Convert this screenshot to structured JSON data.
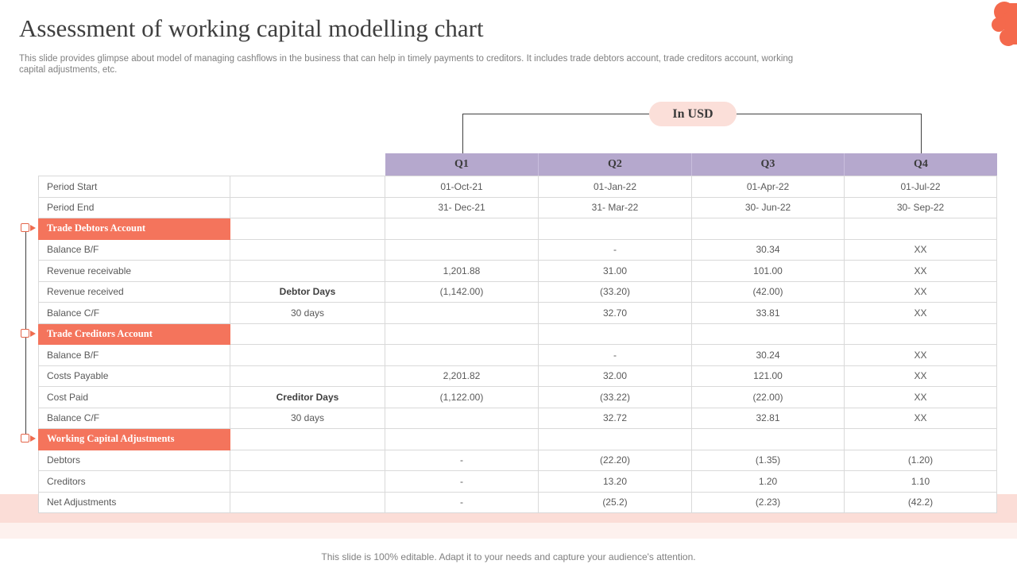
{
  "slide": {
    "title": "Assessment of working capital modelling chart",
    "subtitle": "This slide provides glimpse about model of managing cashflows in the business that can help in timely payments to creditors. It includes trade debtors account, trade creditors account, working capital adjustments, etc.",
    "badge": "In USD",
    "footer": "This slide is 100% editable. Adapt it to your needs and capture your audience's attention."
  },
  "colors": {
    "accent_blob_orange": "#f4694c",
    "section_header_orange": "#f4745c",
    "quarter_header_purple": "#b5a8cd",
    "badge_pink": "#fbdfd9",
    "bottom_strip_pink": "#fbddd7",
    "grid_line_gray": "#d9d9d9"
  },
  "icons": {
    "corner_decoration": "paint-splatter-blob",
    "section_marker": "square-with-right-arrow"
  },
  "table": {
    "quarter_headers": [
      "Q1",
      "Q2",
      "Q3",
      "Q4"
    ],
    "rows": [
      {
        "type": "data",
        "label": "Period Start",
        "days": "",
        "values": [
          "01-Oct-21",
          "01-Jan-22",
          "01-Apr-22",
          "01-Jul-22"
        ]
      },
      {
        "type": "data",
        "label": "Period End",
        "days": "",
        "values": [
          "31- Dec-21",
          "31- Mar-22",
          "30- Jun-22",
          "30- Sep-22"
        ]
      },
      {
        "type": "section",
        "label": "Trade Debtors Account",
        "days": "",
        "values": [
          "",
          "",
          "",
          ""
        ]
      },
      {
        "type": "data",
        "label": "Balance B/F",
        "days": "",
        "values": [
          "",
          "-",
          "30.34",
          "XX"
        ]
      },
      {
        "type": "data",
        "label": "Revenue  receivable",
        "days": "",
        "values": [
          "1,201.88",
          "31.00",
          "101.00",
          "XX"
        ]
      },
      {
        "type": "data",
        "label": "Revenue  received",
        "days": "Debtor Days",
        "days_bold": true,
        "values": [
          "(1,142.00)",
          "(33.20)",
          "(42.00)",
          "XX"
        ]
      },
      {
        "type": "data",
        "label": "Balance C/F",
        "days": "30 days",
        "values": [
          "",
          "32.70",
          "33.81",
          "XX"
        ]
      },
      {
        "type": "section",
        "label": "Trade Creditors Account",
        "days": "",
        "values": [
          "",
          "",
          "",
          ""
        ]
      },
      {
        "type": "data",
        "label": "Balance B/F",
        "days": "",
        "values": [
          "",
          "-",
          "30.24",
          "XX"
        ]
      },
      {
        "type": "data",
        "label": "Costs Payable",
        "days": "",
        "values": [
          "2,201.82",
          "32.00",
          "121.00",
          "XX"
        ]
      },
      {
        "type": "data",
        "label": "Cost Paid",
        "days": "Creditor Days",
        "days_bold": true,
        "values": [
          "(1,122.00)",
          "(33.22)",
          "(22.00)",
          "XX"
        ]
      },
      {
        "type": "data",
        "label": "Balance C/F",
        "days": "30 days",
        "values": [
          "",
          "32.72",
          "32.81",
          "XX"
        ]
      },
      {
        "type": "section",
        "label": "Working Capital Adjustments",
        "days": "",
        "values": [
          "",
          "",
          "",
          ""
        ]
      },
      {
        "type": "data",
        "label": "Debtors",
        "days": "",
        "values": [
          "-",
          "(22.20)",
          "(1.35)",
          "(1.20)"
        ]
      },
      {
        "type": "data",
        "label": "Creditors",
        "days": "",
        "values": [
          "-",
          "13.20",
          "1.20",
          "1.10"
        ]
      },
      {
        "type": "data",
        "label": "Net Adjustments",
        "days": "",
        "values": [
          "-",
          "(25.2)",
          "(2.23)",
          "(42.2)"
        ]
      }
    ]
  }
}
